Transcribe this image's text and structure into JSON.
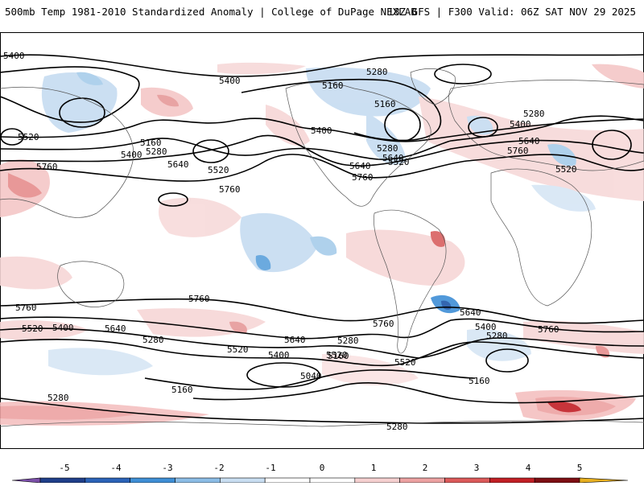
{
  "header": {
    "title_left": "500mb Temp 1981-2010 Standardized Anomaly | College of DuPage NEXLAB",
    "title_right": "18Z GFS | F300 Valid: 06Z SAT NOV 29 2025"
  },
  "contour_labels": [
    {
      "text": "5400"
    },
    {
      "text": "5400"
    },
    {
      "text": "5160"
    },
    {
      "text": "5280"
    },
    {
      "text": "5160"
    },
    {
      "text": "5280"
    },
    {
      "text": "5400"
    },
    {
      "text": "5640"
    },
    {
      "text": "5760"
    },
    {
      "text": "5520"
    },
    {
      "text": "5520"
    },
    {
      "text": "5160"
    },
    {
      "text": "5280"
    },
    {
      "text": "5400"
    },
    {
      "text": "5760"
    },
    {
      "text": "5640"
    },
    {
      "text": "5520"
    },
    {
      "text": "5760"
    },
    {
      "text": "5400"
    },
    {
      "text": "5280"
    },
    {
      "text": "5640"
    },
    {
      "text": "5760"
    },
    {
      "text": "5520"
    },
    {
      "text": "5640"
    },
    {
      "text": "5520"
    },
    {
      "text": "5760"
    },
    {
      "text": "5520"
    },
    {
      "text": "5400"
    },
    {
      "text": "5640"
    },
    {
      "text": "5280"
    },
    {
      "text": "5760"
    },
    {
      "text": "5640"
    },
    {
      "text": "5760"
    },
    {
      "text": "5400"
    },
    {
      "text": "5280"
    },
    {
      "text": "5760"
    },
    {
      "text": "5640"
    },
    {
      "text": "5400"
    },
    {
      "text": "5520"
    },
    {
      "text": "5280"
    },
    {
      "text": "5160"
    },
    {
      "text": "5520"
    },
    {
      "text": "5040"
    },
    {
      "text": "5160"
    },
    {
      "text": "5160"
    },
    {
      "text": "5280"
    },
    {
      "text": "5280"
    }
  ],
  "colorbar": {
    "ticks": [
      "-5",
      "-4",
      "-3",
      "-2",
      "-1",
      "0",
      "1",
      "2",
      "3",
      "4",
      "5"
    ],
    "colors": [
      "#7b4fa8",
      "#1f3f8a",
      "#2b63b8",
      "#3f8fd6",
      "#8cbde6",
      "#c9def2",
      "#ffffff",
      "#ffffff",
      "#f6d0d0",
      "#eda2a2",
      "#dc5a5a",
      "#c21f25",
      "#7e0f14",
      "#e8b020"
    ]
  }
}
